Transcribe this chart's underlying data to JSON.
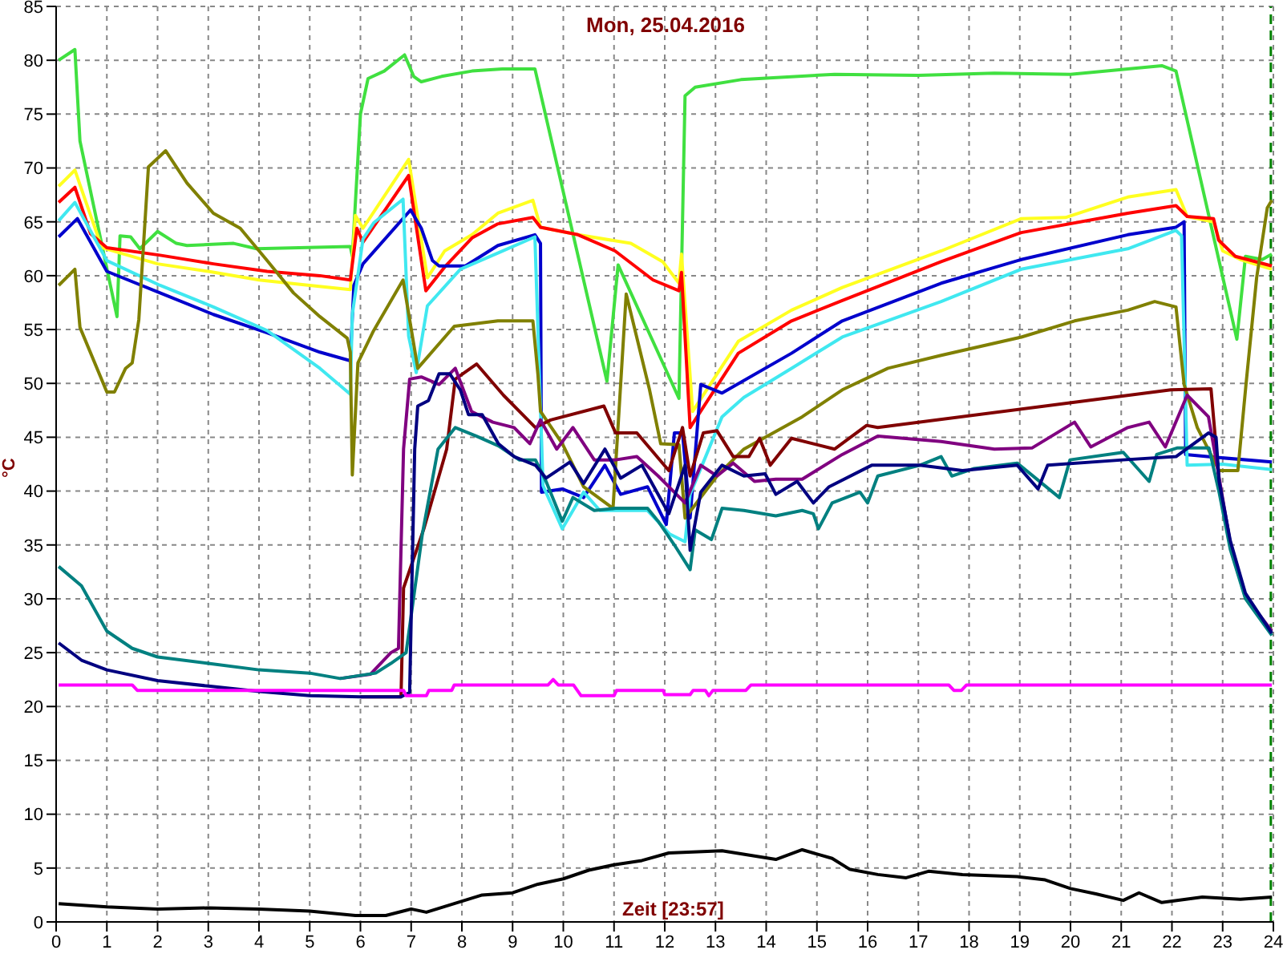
{
  "chart_data": {
    "type": "line",
    "title": "Mon, 25.04.2016",
    "xlabel": "Zeit [23:57]",
    "ylabel": "°C",
    "xlim": [
      0,
      24
    ],
    "xticks": [
      0,
      1,
      2,
      3,
      4,
      5,
      6,
      7,
      8,
      9,
      10,
      11,
      12,
      13,
      14,
      15,
      16,
      17,
      18,
      19,
      20,
      21,
      22,
      23,
      24
    ],
    "ylim": [
      0,
      85
    ],
    "yticks": [
      0,
      5,
      10,
      15,
      20,
      25,
      30,
      35,
      40,
      45,
      50,
      55,
      60,
      65,
      70,
      75,
      80,
      85
    ],
    "grid": true,
    "legend": false,
    "line_style": "solid",
    "ref_lines": [
      {
        "axis": "x",
        "value": 23.95,
        "color": "#008000",
        "line_style": "dashed"
      }
    ],
    "series": [
      {
        "color": "#40e040",
        "x": [
          0.05,
          0.37,
          0.47,
          1.2,
          1.26,
          1.47,
          1.65,
          2.0,
          2.37,
          2.58,
          3.5,
          3.95,
          5.8,
          5.84,
          6.0,
          6.15,
          6.47,
          6.87,
          7.05,
          7.2,
          7.6,
          8.2,
          8.8,
          9.44,
          10.86,
          11.08,
          12.28,
          12.4,
          12.6,
          13.5,
          15.35,
          17.0,
          18.5,
          20.0,
          21.8,
          22.08,
          23.28,
          23.45,
          23.78,
          23.97
        ],
        "values": [
          80,
          81,
          72.5,
          56.2,
          63.7,
          63.6,
          62.5,
          64.1,
          63,
          62.8,
          63,
          62.5,
          62.7,
          61.8,
          75,
          78.3,
          79,
          80.5,
          78.5,
          78,
          78.5,
          79,
          79.2,
          79.2,
          50.2,
          61,
          48.6,
          76.7,
          77.5,
          78.2,
          78.7,
          78.6,
          78.8,
          78.7,
          79.5,
          79,
          54.1,
          61.8,
          61.5,
          62
        ]
      },
      {
        "color": "#ffff20",
        "x": [
          0.05,
          0.37,
          0.9,
          2.0,
          3.0,
          4.0,
          5.0,
          5.8,
          5.9,
          6.05,
          6.95,
          7.32,
          7.66,
          8.2,
          8.71,
          9.4,
          9.55,
          10.29,
          11.33,
          11.96,
          12.28,
          12.33,
          12.55,
          13.45,
          14.5,
          15.5,
          17.45,
          19.03,
          19.9,
          21.13,
          22.08,
          22.3,
          22.82,
          23.0,
          23.35,
          23.97
        ],
        "values": [
          68.3,
          69.8,
          62.6,
          61.1,
          60.4,
          59.6,
          59.1,
          58.7,
          65.6,
          64.4,
          70.8,
          59.8,
          62.3,
          63.8,
          65.8,
          67,
          64.5,
          63.8,
          63,
          61.3,
          59.3,
          62,
          47.4,
          53.9,
          56.8,
          58.9,
          62.3,
          65.3,
          65.4,
          67.3,
          68,
          65.5,
          65,
          62.3,
          61.5,
          60.6
        ]
      },
      {
        "color": "#ff0000",
        "x": [
          0.05,
          0.37,
          0.68,
          1.0,
          2.05,
          3.1,
          4.16,
          5.2,
          5.8,
          5.93,
          6.05,
          6.95,
          7.29,
          7.66,
          8.2,
          8.7,
          9.4,
          9.55,
          10.29,
          11.02,
          11.77,
          12.28,
          12.33,
          12.5,
          13.45,
          14.5,
          15.5,
          17.45,
          19.03,
          21.13,
          22.08,
          22.3,
          22.82,
          22.92,
          23.25,
          23.97
        ],
        "values": [
          66.8,
          68.2,
          63.9,
          62.6,
          61.9,
          61.1,
          60.4,
          60,
          59.6,
          64.4,
          63.1,
          69.3,
          58.6,
          60.8,
          63.5,
          64.8,
          65.4,
          64.5,
          63.8,
          62.3,
          59.6,
          58.6,
          60.3,
          45.9,
          52.8,
          55.8,
          57.7,
          61.3,
          64,
          65.8,
          66.5,
          65.5,
          65.3,
          63.3,
          61.8,
          60.9
        ]
      },
      {
        "color": "#0000cc",
        "x": [
          0.05,
          0.42,
          1.0,
          2.05,
          3.1,
          4.16,
          5.2,
          5.8,
          5.87,
          6.05,
          6.99,
          7.2,
          7.42,
          7.55,
          8.07,
          8.71,
          9.44,
          9.55,
          9.57,
          9.98,
          10.4,
          10.82,
          11.13,
          11.66,
          12.03,
          12.19,
          12.35,
          12.5,
          12.71,
          13.13,
          14.5,
          15.5,
          17.45,
          19.03,
          21.13,
          22.08,
          22.24,
          22.27,
          22.7,
          23.97
        ],
        "values": [
          63.6,
          65.3,
          60.4,
          58.4,
          56.4,
          54.7,
          52.9,
          52.1,
          59.1,
          61.1,
          66.1,
          64.4,
          61.4,
          60.9,
          60.9,
          62.8,
          63.8,
          63,
          39.9,
          40.2,
          39.4,
          42.4,
          39.7,
          40.4,
          36.9,
          45.4,
          45.4,
          37.5,
          49.9,
          49.1,
          52.8,
          55.8,
          59.3,
          61.5,
          63.8,
          64.5,
          65,
          43.4,
          43.2,
          42.7
        ]
      },
      {
        "color": "#40e8f0",
        "x": [
          0.05,
          0.37,
          1.0,
          2.05,
          3.1,
          4.16,
          5.2,
          5.8,
          5.84,
          6.05,
          6.26,
          6.84,
          6.95,
          7.1,
          7.32,
          7.97,
          8.71,
          9.44,
          9.6,
          9.98,
          10.4,
          10.72,
          11.66,
          12.1,
          12.4,
          12.5,
          13.13,
          13.56,
          14.5,
          15.5,
          17.45,
          19.03,
          21.13,
          22.08,
          22.19,
          22.3,
          23.0,
          23.97
        ],
        "values": [
          65.1,
          66.8,
          61.4,
          59.1,
          57.1,
          54.9,
          51.4,
          49,
          56.4,
          63.4,
          64.9,
          67.1,
          54.4,
          51,
          57.2,
          60.6,
          62.1,
          63.6,
          40.5,
          36.5,
          39.9,
          38.2,
          38.2,
          36,
          35.3,
          39.7,
          46.9,
          48.7,
          51.4,
          54.3,
          57.6,
          60.6,
          62.5,
          64.2,
          63.7,
          42.4,
          42.5,
          42
        ]
      },
      {
        "color": "#808000",
        "x": [
          0.05,
          0.37,
          0.47,
          1.0,
          1.15,
          1.37,
          1.5,
          1.63,
          1.82,
          2.16,
          2.58,
          3.1,
          3.63,
          4.16,
          4.68,
          5.2,
          5.74,
          5.8,
          5.84,
          5.95,
          6.26,
          6.84,
          7.13,
          7.85,
          8.71,
          9.4,
          9.5,
          9.55,
          9.98,
          10.4,
          10.98,
          11.24,
          11.7,
          11.92,
          12.28,
          12.4,
          13.03,
          13.56,
          14.71,
          15.5,
          16.4,
          17.45,
          19.03,
          20.08,
          21.13,
          21.66,
          22.08,
          22.24,
          22.5,
          22.93,
          23.3,
          23.46,
          23.67,
          23.88,
          23.97
        ],
        "values": [
          59.1,
          60.6,
          55.2,
          49.2,
          49.2,
          51.4,
          51.9,
          55.9,
          70.1,
          71.6,
          68.6,
          65.8,
          64.4,
          61.4,
          58.4,
          56.2,
          54.2,
          52.9,
          41.5,
          51.9,
          54.9,
          59.6,
          51.4,
          55.3,
          55.8,
          55.8,
          50.8,
          47.4,
          44.4,
          40.4,
          38.4,
          58.3,
          49.4,
          44.4,
          44.3,
          37.5,
          41.4,
          43.9,
          46.9,
          49.4,
          51.4,
          52.6,
          54.3,
          55.8,
          56.8,
          57.6,
          57.1,
          49.9,
          45.9,
          41.9,
          41.9,
          49.9,
          59.8,
          66.3,
          67
        ]
      },
      {
        "color": "#800000",
        "x": [
          6,
          6.8,
          6.85,
          7.25,
          7.7,
          7.87,
          8.29,
          8.82,
          9.45,
          9.75,
          10.8,
          11.03,
          11.45,
          12.08,
          12.35,
          12.5,
          12.76,
          13.03,
          13.35,
          13.66,
          13.87,
          14.08,
          14.5,
          15.35,
          15.98,
          16.2,
          21.98,
          22.77,
          22.93
        ],
        "values": [
          20.9,
          20.9,
          31,
          36.5,
          43.9,
          50.4,
          51.8,
          48.9,
          45.9,
          46.6,
          47.9,
          45.4,
          45.4,
          41.9,
          45.9,
          41.4,
          45.4,
          45.6,
          43.2,
          43.2,
          44.9,
          42.4,
          44.9,
          43.9,
          46.1,
          45.9,
          49.4,
          49.5,
          40.9
        ]
      },
      {
        "color": "#800080",
        "x": [
          5.6,
          6.2,
          6.6,
          6.75,
          6.85,
          6.97,
          7.2,
          7.55,
          7.87,
          8.19,
          8.61,
          9.03,
          9.34,
          9.55,
          9.87,
          10.19,
          10.61,
          11.03,
          11.45,
          11.87,
          12.4,
          12.71,
          13.03,
          13.35,
          13.77,
          14.19,
          14.71,
          15.5,
          16.2,
          17.45,
          18.5,
          19.24,
          20.08,
          20.4,
          21.13,
          21.55,
          21.87,
          22.3,
          22.72,
          22.87,
          23.15,
          23.45,
          23.97
        ],
        "values": [
          22.6,
          23,
          25,
          25.4,
          43.9,
          50.4,
          50.6,
          49.9,
          51.4,
          47.4,
          46.4,
          45.9,
          44.4,
          46.6,
          43.9,
          45.9,
          42.9,
          42.9,
          43.2,
          41.4,
          38.9,
          42.4,
          41.4,
          42.6,
          40.9,
          41.1,
          41.1,
          43.4,
          45.1,
          44.6,
          43.9,
          44,
          46.4,
          44.1,
          45.9,
          46.4,
          44.1,
          48.9,
          46.9,
          42.9,
          35.2,
          30.2,
          27
        ]
      },
      {
        "color": "#008080",
        "x": [
          0.05,
          0.5,
          1,
          1.5,
          2,
          3,
          4,
          5,
          5.6,
          6.3,
          6.6,
          6.9,
          7.22,
          7.53,
          7.87,
          8.29,
          8.72,
          9.13,
          9.45,
          9.66,
          9.98,
          10.19,
          10.61,
          11.03,
          11.66,
          11.87,
          12.19,
          12.5,
          12.6,
          12.92,
          13.13,
          13.56,
          14.19,
          14.71,
          14.93,
          15.03,
          15.3,
          15.85,
          16,
          16.2,
          17.03,
          17.45,
          17.66,
          18.1,
          18.95,
          19.78,
          19.99,
          21.04,
          21.55,
          21.7,
          22.1,
          22.73,
          22.93,
          23.15,
          23.45,
          23.97
        ],
        "values": [
          33,
          31.2,
          27,
          25.4,
          24.6,
          24,
          23.4,
          23.1,
          22.6,
          23.1,
          24,
          25,
          36,
          43.9,
          45.9,
          45.1,
          44.2,
          42.9,
          42.9,
          40.9,
          37.2,
          39.4,
          38.2,
          38.4,
          38.4,
          37.2,
          35,
          32.7,
          36.4,
          35.5,
          38.4,
          38.2,
          37.7,
          38.2,
          37.9,
          36.5,
          38.9,
          39.9,
          38.9,
          41.4,
          42.4,
          43.2,
          41.4,
          42.1,
          42.6,
          39.4,
          42.9,
          43.6,
          40.9,
          43.4,
          44,
          44,
          39.9,
          34.6,
          30,
          26.6
        ]
      },
      {
        "color": "#000080",
        "x": [
          0.05,
          0.5,
          1,
          2,
          3,
          4,
          5,
          6,
          6.8,
          6.97,
          7.07,
          7.13,
          7.34,
          7.55,
          7.76,
          7.97,
          8.13,
          8.4,
          8.72,
          9.03,
          9.45,
          9.66,
          10.13,
          10.4,
          10.82,
          11.13,
          11.55,
          12.08,
          12.4,
          12.5,
          12.71,
          13.13,
          13.56,
          13.98,
          14.19,
          14.61,
          14.93,
          15.24,
          16.08,
          17.03,
          17.87,
          18.95,
          19.36,
          19.55,
          21.04,
          22.08,
          22.72,
          22.87,
          22.93,
          23.15,
          23.45,
          23.97
        ],
        "values": [
          25.9,
          24.3,
          23.4,
          22.4,
          21.9,
          21.4,
          21,
          20.9,
          20.9,
          21.3,
          43.9,
          47.9,
          48.4,
          50.9,
          50.9,
          49.4,
          47.1,
          47.1,
          44.4,
          43.2,
          42.4,
          41.2,
          42.7,
          40.7,
          43.9,
          41.2,
          42.4,
          37.9,
          42.4,
          34.5,
          39.9,
          42.4,
          41.4,
          41.6,
          39.7,
          40.9,
          38.9,
          40.4,
          42.4,
          42.4,
          41.9,
          42.4,
          40.2,
          42.4,
          42.9,
          43.2,
          45.4,
          45,
          40.9,
          35.4,
          30.5,
          26.8
        ]
      },
      {
        "color": "#ff00ff",
        "x": [
          0.05,
          1.5,
          1.6,
          6.85,
          6.9,
          7.3,
          7.35,
          7.8,
          7.85,
          9.7,
          9.8,
          9.9,
          10.2,
          10.35,
          11.0,
          11.05,
          11.97,
          12.0,
          12.5,
          12.56,
          12.8,
          12.87,
          12.95,
          13.6,
          13.7,
          17.6,
          17.7,
          17.85,
          17.95,
          23.97
        ],
        "values": [
          22,
          22,
          21.5,
          21.5,
          21,
          21,
          21.5,
          21.5,
          22,
          22,
          22.5,
          22,
          22,
          21,
          21,
          21.5,
          21.5,
          21.1,
          21.1,
          21.5,
          21.5,
          21,
          21.5,
          21.5,
          22,
          22,
          21.5,
          21.5,
          22,
          22
        ]
      },
      {
        "color": "#000000",
        "x": [
          0.05,
          1,
          2,
          3,
          4,
          5,
          5.9,
          6.5,
          7,
          7.3,
          7.85,
          8.4,
          9,
          9.5,
          10,
          10.5,
          11,
          11.55,
          12.08,
          13.13,
          14.19,
          14.71,
          15.3,
          15.64,
          16.2,
          16.76,
          17.2,
          17.87,
          18.95,
          19.5,
          20,
          20.5,
          21.04,
          21.35,
          21.8,
          22.6,
          23.35,
          23.97
        ],
        "values": [
          1.7,
          1.4,
          1.2,
          1.3,
          1.2,
          1,
          0.6,
          0.6,
          1.2,
          0.9,
          1.7,
          2.5,
          2.7,
          3.5,
          4,
          4.8,
          5.3,
          5.7,
          6.4,
          6.6,
          5.8,
          6.7,
          5.9,
          4.9,
          4.4,
          4.1,
          4.7,
          4.4,
          4.2,
          3.9,
          3.1,
          2.6,
          2,
          2.7,
          1.8,
          2.3,
          2.1,
          2.3
        ]
      }
    ]
  }
}
